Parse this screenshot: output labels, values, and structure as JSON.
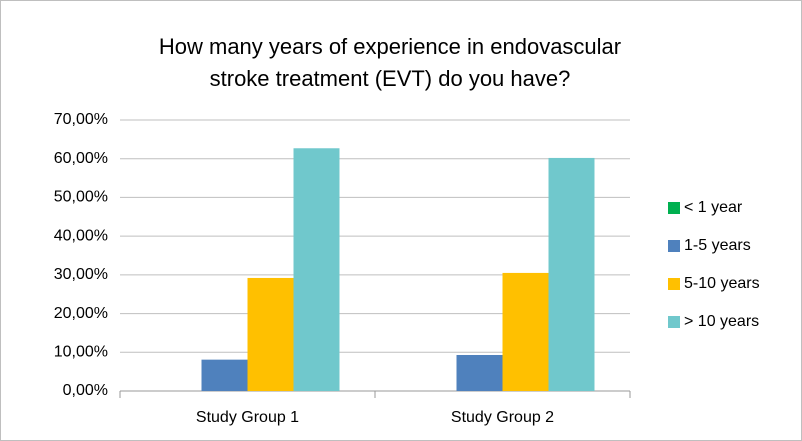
{
  "chart_data": {
    "type": "bar",
    "title": [
      "How many years of experience in endovascular",
      "stroke treatment (EVT) do you have?"
    ],
    "categories": [
      "Study Group 1",
      "Study Group 2"
    ],
    "series": [
      {
        "name": "< 1 year",
        "color": "#00b050",
        "values": [
          0,
          0
        ]
      },
      {
        "name": "1-5 years",
        "color": "#4f81bd",
        "values": [
          8.1,
          9.3
        ]
      },
      {
        "name": "5-10 years",
        "color": "#ffc000",
        "values": [
          29.2,
          30.5
        ]
      },
      {
        "name": "> 10 years",
        "color": "#70c8cc",
        "values": [
          62.7,
          60.2
        ]
      }
    ],
    "ylim": [
      0,
      70
    ],
    "yticks": [
      {
        "value": 0,
        "label": "0,00%"
      },
      {
        "value": 10,
        "label": "10,00%"
      },
      {
        "value": 20,
        "label": "20,00%"
      },
      {
        "value": 30,
        "label": "30,00%"
      },
      {
        "value": 40,
        "label": "40,00%"
      },
      {
        "value": 50,
        "label": "50,00%"
      },
      {
        "value": 60,
        "label": "60,00%"
      },
      {
        "value": 70,
        "label": "70,00%"
      }
    ],
    "grid": true,
    "legend": "right"
  }
}
